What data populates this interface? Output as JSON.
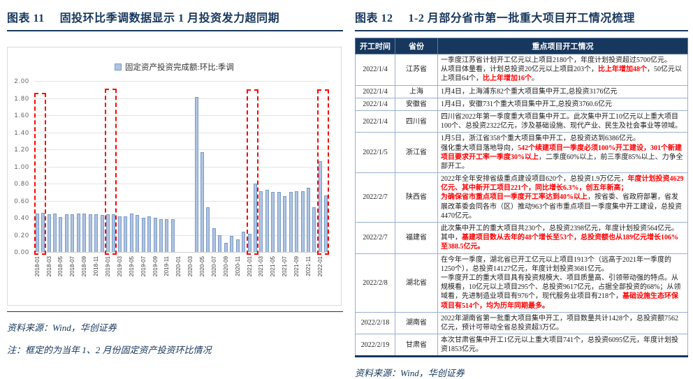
{
  "figure11": {
    "label": "图表 11",
    "title": "固投环比季调数据显示 1 月投资发力超同期",
    "source": "资料来源：Wind，华创证券",
    "note": "注：框定的为当年 1、2 月份固定资产投资环比情况"
  },
  "chart_data": {
    "type": "bar",
    "title": "",
    "legend": "固定资产投资完成额:环比:季调",
    "xlabel": "",
    "ylabel": "",
    "ylim": [
      0,
      2.0
    ],
    "ytick_step": 0.2,
    "grid": true,
    "legend_position": "top-center",
    "xtick_every": 2,
    "categories": [
      "2018-01",
      "2018-02",
      "2018-03",
      "2018-04",
      "2018-05",
      "2018-06",
      "2018-07",
      "2018-08",
      "2018-09",
      "2018-10",
      "2018-11",
      "2018-12",
      "2019-01",
      "2019-02",
      "2019-03",
      "2019-04",
      "2019-05",
      "2019-06",
      "2019-07",
      "2019-08",
      "2019-09",
      "2019-10",
      "2019-11",
      "2019-12",
      "2020-01",
      "2020-02",
      "2020-03",
      "2020-04",
      "2020-05",
      "2020-06",
      "2020-07",
      "2020-08",
      "2020-09",
      "2020-10",
      "2020-11",
      "2020-12",
      "2021-01",
      "2021-02",
      "2021-03",
      "2021-04",
      "2021-05",
      "2021-06",
      "2021-07",
      "2021-08",
      "2021-09",
      "2021-10",
      "2021-11",
      "2021-12",
      "2022-01",
      "2022-02"
    ],
    "values": [
      0.45,
      0.46,
      0.44,
      0.45,
      0.41,
      0.44,
      0.44,
      0.45,
      0.45,
      0.44,
      0.44,
      0.43,
      0.44,
      0.44,
      0.42,
      0.42,
      0.45,
      0.43,
      0.4,
      0.42,
      0.4,
      0.38,
      0.38,
      0.38,
      null,
      null,
      null,
      1.81,
      1.17,
      0.52,
      0.28,
      0.2,
      0.11,
      0.19,
      0.15,
      0.24,
      0.21,
      0.8,
      0.71,
      0.73,
      0.7,
      0.7,
      0.65,
      0.7,
      0.71,
      0.71,
      0.75,
      0.52,
      1.06,
      0.66
    ],
    "highlight_boxes": [
      {
        "start_index": 0,
        "end_index": 1,
        "top": 1.86,
        "note": "2018年1-2月"
      },
      {
        "start_index": 12,
        "end_index": 13,
        "top": 1.91,
        "note": "2019年1-2月"
      },
      {
        "start_index": 36,
        "end_index": 37,
        "top": 1.9,
        "note": "2021年1-2月"
      },
      {
        "start_index": 48,
        "end_index": 49,
        "top": 1.9,
        "note": "2022年1-2月"
      }
    ],
    "colors": {
      "bar_fill": "#AFC4E1",
      "bar_border": "#7B9AC6",
      "box": "#FF0000",
      "grid": "#E4E4E4"
    }
  },
  "figure12": {
    "label": "图表 12",
    "title": "1-2 月部分省市第一批重大项目开工情况梳理",
    "source": "资料来源：Wind，华创证券",
    "table": {
      "headers": [
        "开工时间",
        "省份",
        "重点项目开工情况"
      ],
      "rows": [
        {
          "date": "2022/1/4",
          "province": "江苏省",
          "segments": [
            {
              "t": "一季度江苏省计划开工亿元以上项目2180个，年度计划投资超过5700亿元。\n从项目体量看，计划总投资20亿元以上项目203个，",
              "red": false
            },
            {
              "t": "比上年增加48个",
              "red": true
            },
            {
              "t": "，50亿元以上项目64个，",
              "red": false
            },
            {
              "t": "比上年增加16个",
              "red": true
            },
            {
              "t": "。",
              "red": false
            }
          ]
        },
        {
          "date": "2022/1/4",
          "province": "上海",
          "segments": [
            {
              "t": "1月4日，上海浦东82个重大项目集中开工,总投资3176亿元",
              "red": false
            }
          ]
        },
        {
          "date": "2022/1/4",
          "province": "安徽省",
          "segments": [
            {
              "t": "1月4日，安徽731个重大项目集中开工,总投资3760.6亿元",
              "red": false
            }
          ]
        },
        {
          "date": "2022/1/4",
          "province": "四川省",
          "segments": [
            {
              "t": "四川省2022年第一季度重大项目集中开工。此次集中开工10亿元以上重大项目100个、总投资2322亿元，涉及基础设施、现代产业、民生及社会事业等领域。",
              "red": false
            }
          ]
        },
        {
          "date": "2022/1/5",
          "province": "浙江省",
          "segments": [
            {
              "t": "1月5日，浙江省358个重大项目集中开工，总投资达到6386亿元。\n强化重大项目落地导向，",
              "red": false
            },
            {
              "t": "542个续建项目一季度必须100%开工建设，301个新建项目要求开工率一季度30%以上",
              "red": true
            },
            {
              "t": "，二季度60%以上，前三季度85%以上、力争全部开工。",
              "red": false
            }
          ]
        },
        {
          "date": "2022/2/7",
          "province": "陕西省",
          "segments": [
            {
              "t": "2022年全年安排省级重点建设项目620个，总投资1.9万亿元，",
              "red": false
            },
            {
              "t": "年度计划投资4629亿元、其中新开工项目221个，同比增长6.3%，创五年新高；\n为确保省市重点项目一季度开工率达到40%以上",
              "red": true
            },
            {
              "t": "，按省委、省政府部署，省发展改革委会同各市（区）推动963个省市重点项目一季度集中开工建设，总投资4470亿元。",
              "red": false
            }
          ]
        },
        {
          "date": "2022/2/7",
          "province": "福建省",
          "segments": [
            {
              "t": "此次集中开工的重大项目共230个，总投资2398亿元，年度计划投资564亿元。其中，",
              "red": false
            },
            {
              "t": "基建项目数从去年的48个增长至53个，总投资额也从189亿元增长106%至388.5亿元。",
              "red": true
            }
          ]
        },
        {
          "date": "2022/2/8",
          "province": "湖北省",
          "segments": [
            {
              "t": "在今年一季度，湖北省已开工亿元以上项目1913个（远高于2021年一季度的1250个），总投资14127亿元，年度计划投资3681亿元。\n一季度开工的重大项目具有投资规模大、项目质量高、引领带动强的特点。从规模看，10亿元以上项目295个、总投资9617亿元，占据全部投资的68%；从领域看，先进制造业项目有976个，现代服务业项目有218个，",
              "red": false
            },
            {
              "t": "基础设施生态环保项目有514个，均为历年同期最多。",
              "red": true
            }
          ]
        },
        {
          "date": "2022/2/18",
          "province": "湖南省",
          "segments": [
            {
              "t": "2022年湖南省第一批重大项目集中开工，项目数量共计1428个，总投资额7562亿元，预计可带动全省总投资超3万亿。",
              "red": false
            }
          ]
        },
        {
          "date": "2022/2/19",
          "province": "甘肃省",
          "segments": [
            {
              "t": "本次甘肃省集中开工1亿元以上重大项目741个，总投资6095亿元，年度计划投资1853亿元。",
              "red": false
            }
          ]
        }
      ]
    }
  }
}
